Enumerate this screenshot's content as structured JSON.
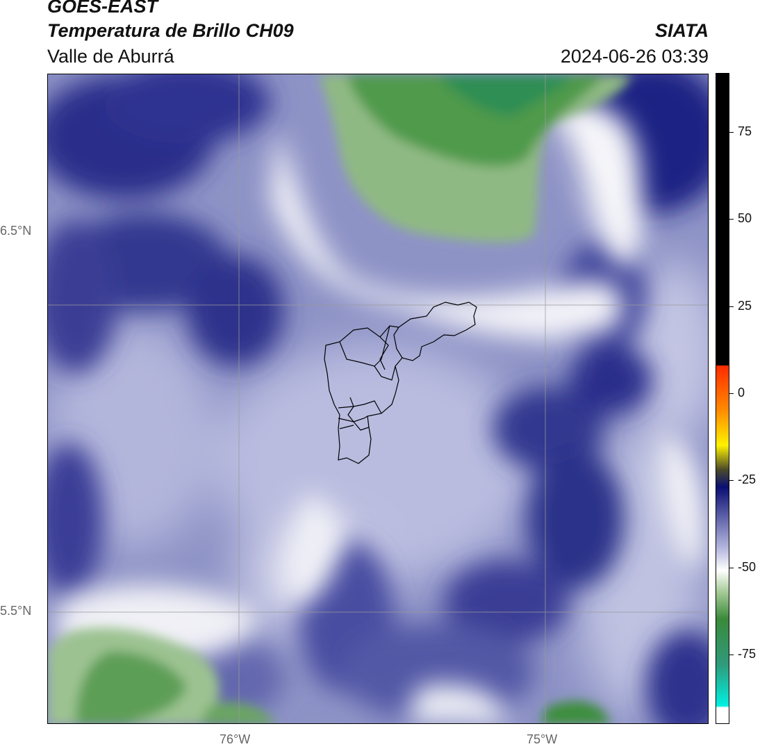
{
  "header": {
    "title_line1": "GOES-EAST",
    "title_line2": "Temperatura de Brillo CH09",
    "organization": "SIATA",
    "region": "Valle de Aburrá",
    "datetime": "2024-06-26 03:39"
  },
  "map": {
    "lat_labels": [
      "6.5°N",
      "5.5°N"
    ],
    "lon_labels": [
      "76°W",
      "75°W"
    ],
    "colors": {
      "deep_blue": "#1f2481",
      "mid_blue": "#5e63a8",
      "light_lavender": "#b7bade",
      "white": "#f4f4f8",
      "green_dark": "#3f8d3e",
      "green_light": "#a9c99b"
    }
  },
  "colorbar": {
    "ticks": [
      "75",
      "50",
      "25",
      "0",
      "-25",
      "-50",
      "-75"
    ],
    "tick_values": [
      75,
      50,
      25,
      0,
      -25,
      -50,
      -75
    ],
    "range": [
      -95,
      92
    ],
    "colors": {
      "top": "#000000",
      "red": "#ff2a00",
      "orange": "#ff8c00",
      "yellow": "#fff200",
      "navy": "#0a0f74",
      "lavender": "#b9bbe0",
      "green": "#3a8a3a",
      "cyan": "#00f0e0"
    }
  }
}
